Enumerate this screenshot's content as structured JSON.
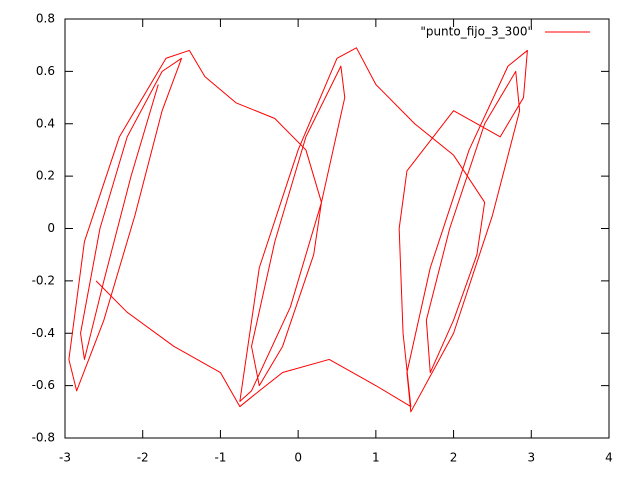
{
  "chart_data": {
    "type": "line",
    "x": [
      -1.8,
      -2.15,
      -2.5,
      -2.75,
      -2.8,
      -2.55,
      -2.2,
      -1.75,
      -1.5,
      -1.75,
      -2.1,
      -2.5,
      -2.85,
      -2.95,
      -2.75,
      -2.3,
      -1.7,
      -1.4,
      -1.2,
      -0.8,
      -0.3,
      0.1,
      0.3,
      0.2,
      -0.2,
      -0.5,
      -0.6,
      -0.3,
      0.1,
      0.55,
      0.6,
      0.3,
      -0.1,
      -0.6,
      -0.75,
      -0.5,
      0,
      0.5,
      0.75,
      1,
      1.5,
      2,
      2.4,
      2.3,
      2,
      1.7,
      1.65,
      1.95,
      2.4,
      2.8,
      2.85,
      2.5,
      2,
      1.45,
      1.4,
      1.7,
      2.2,
      2.7,
      2.95,
      2.9,
      2.6,
      2,
      1.4,
      1.3,
      1.35,
      1.45,
      1,
      0.4,
      -0.2,
      -0.5,
      -0.75,
      -1,
      -1.6,
      -2.2,
      -2.6
    ],
    "series": [
      {
        "name": "\"punto_fijo_3_300\"",
        "color": "#ff0000",
        "values": [
          0.55,
          0.2,
          -0.2,
          -0.5,
          -0.4,
          0,
          0.35,
          0.6,
          0.65,
          0.45,
          0.05,
          -0.35,
          -0.62,
          -0.5,
          -0.05,
          0.35,
          0.65,
          0.68,
          0.58,
          0.48,
          0.42,
          0.3,
          0.1,
          -0.1,
          -0.45,
          -0.6,
          -0.45,
          -0.05,
          0.35,
          0.62,
          0.5,
          0.1,
          -0.3,
          -0.62,
          -0.66,
          -0.15,
          0.3,
          0.65,
          0.69,
          0.55,
          0.4,
          0.28,
          0.1,
          -0.1,
          -0.35,
          -0.55,
          -0.35,
          0,
          0.4,
          0.6,
          0.45,
          0.05,
          -0.4,
          -0.7,
          -0.55,
          -0.15,
          0.3,
          0.62,
          0.68,
          0.5,
          0.35,
          0.45,
          0.22,
          0,
          -0.4,
          -0.68,
          -0.6,
          -0.5,
          -0.55,
          -0.62,
          -0.68,
          -0.55,
          -0.45,
          -0.32,
          -0.2
        ]
      }
    ],
    "xlim": [
      -3,
      4
    ],
    "ylim": [
      -0.8,
      0.8
    ],
    "xticks": [
      -3,
      -2,
      -1,
      0,
      1,
      2,
      3,
      4
    ],
    "yticks": [
      -0.8,
      -0.6,
      -0.4,
      -0.2,
      0,
      0.2,
      0.4,
      0.6,
      0.8
    ],
    "legend": "top-right"
  }
}
